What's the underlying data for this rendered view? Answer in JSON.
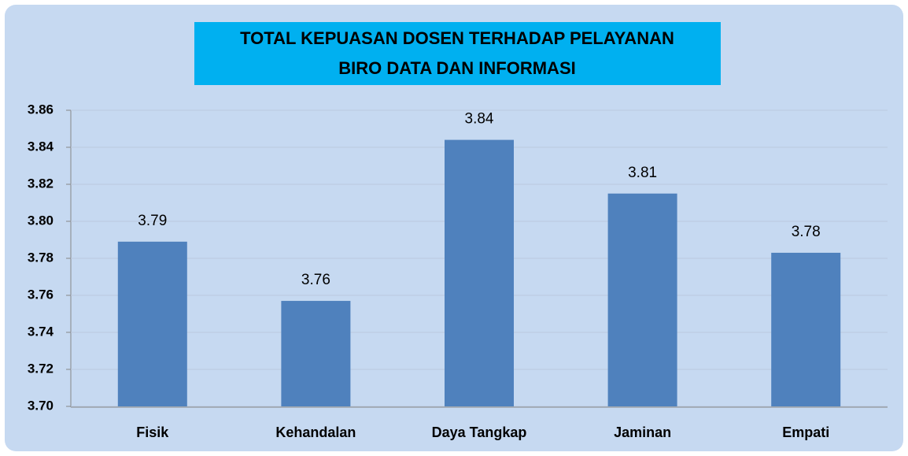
{
  "chart_data": {
    "type": "bar",
    "title": [
      "TOTAL KEPUASAN DOSEN TERHADAP PELAYANAN",
      "BIRO DATA DAN INFORMASI"
    ],
    "categories": [
      "Fisik",
      "Kehandalan",
      "Daya Tangkap",
      "Jaminan",
      "Empati"
    ],
    "values": [
      3.789,
      3.757,
      3.844,
      3.815,
      3.783
    ],
    "value_labels": [
      "3.79",
      "3.76",
      "3.84",
      "3.81",
      "3.78"
    ],
    "color": "#4f81bd",
    "ylim": [
      3.7,
      3.86
    ],
    "yticks": [
      {
        "value": 3.7,
        "label": "3.70"
      },
      3.72,
      3.74,
      3.76,
      3.78,
      {
        "value": 3.8,
        "label": "3.80"
      },
      3.82,
      3.84,
      3.86
    ],
    "grid": true
  }
}
